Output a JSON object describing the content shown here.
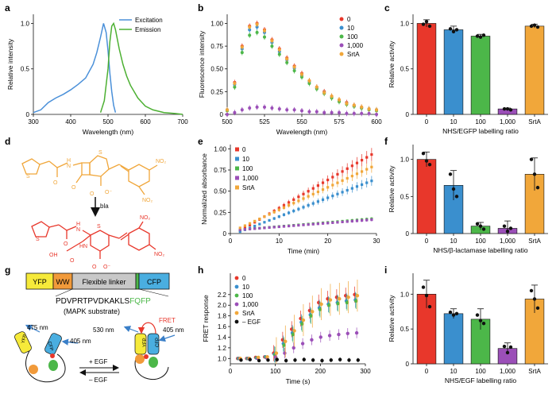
{
  "panels": {
    "a": {
      "letter": "a",
      "ylabel": "Relative intensity",
      "xlabel": "Wavelength (nm)",
      "xticks": [
        "300",
        "400",
        "500",
        "600",
        "700"
      ],
      "yticks": [
        "0",
        "0.5",
        "1.0"
      ],
      "legend": [
        "Excitation",
        "Emission"
      ]
    },
    "b": {
      "letter": "b",
      "ylabel": "Fluorescence intensity",
      "xlabel": "Wavelength (nm)",
      "xticks": [
        "500",
        "525",
        "550",
        "575",
        "600"
      ],
      "yticks": [
        "0",
        "0.25",
        "0.50",
        "0.75",
        "1.00"
      ],
      "legend": [
        "0",
        "10",
        "100",
        "1,000",
        "SrtA"
      ]
    },
    "c": {
      "letter": "c",
      "ylabel": "Relative activity",
      "xlabel": "NHS/EGFP labelling ratio",
      "categories": [
        "0",
        "10",
        "100",
        "1,000",
        "SrtA"
      ],
      "yticks": [
        "0",
        "0.5",
        "1.0"
      ]
    },
    "d": {
      "letter": "d",
      "arrow_label": "bla"
    },
    "e": {
      "letter": "e",
      "ylabel": "Normalized absorbance",
      "xlabel": "Time (min)",
      "xticks": [
        "0",
        "10",
        "20",
        "30"
      ],
      "yticks": [
        "0",
        "0.25",
        "0.50",
        "0.75",
        "1.00"
      ],
      "legend": [
        "0",
        "10",
        "100",
        "1,000",
        "SrtA"
      ]
    },
    "f": {
      "letter": "f",
      "ylabel": "Relative activity",
      "xlabel": "NHS/β-lactamase labelling ratio",
      "categories": [
        "0",
        "10",
        "100",
        "1,000",
        "SrtA"
      ],
      "yticks": [
        "0",
        "0.5",
        "1.0"
      ]
    },
    "g": {
      "letter": "g",
      "segments": [
        "YFP",
        "WW",
        "Flexible linker",
        "CFP"
      ],
      "sequence_main": "PDVPRTPVDKAKLS",
      "sequence_green": "FQFP",
      "substrate_label": "(MAPK substrate)",
      "wl_475": "475 nm",
      "wl_405_left": "405 nm",
      "wl_530": "530 nm",
      "wl_405_right": "405 nm",
      "fret": "FRET",
      "plus_egf": "+ EGF",
      "minus_egf": "– EGF",
      "yfp": "YFP",
      "cfp": "CFP"
    },
    "h": {
      "letter": "h",
      "ylabel": "FRET response",
      "xlabel": "Time (s)",
      "xticks": [
        "0",
        "100",
        "200",
        "300"
      ],
      "yticks": [
        "1.0",
        "1.2",
        "1.4",
        "1.6",
        "1.8",
        "2.0",
        "2.2"
      ],
      "legend": [
        "0",
        "10",
        "100",
        "1,000",
        "SrtA",
        "– EGF"
      ]
    },
    "i": {
      "letter": "i",
      "ylabel": "Relative activity",
      "xlabel": "NHS/EGF labelling ratio",
      "categories": [
        "0",
        "10",
        "100",
        "1,000",
        "SrtA"
      ],
      "yticks": [
        "0",
        "0.5",
        "1.0"
      ]
    }
  },
  "colors": {
    "red": "#e8372b",
    "blue": "#3a8fce",
    "green": "#4cb749",
    "purple": "#9b4fb8",
    "orange": "#f1a73a",
    "excitation": "#4a90d9",
    "emission": "#4cb032",
    "black": "#111111"
  },
  "chart_data": [
    {
      "panel": "a",
      "type": "line",
      "xlabel": "Wavelength (nm)",
      "ylabel": "Relative intensity",
      "xlim": [
        300,
        700
      ],
      "ylim": [
        0,
        1.1
      ],
      "series": [
        {
          "name": "Excitation",
          "x": [
            300,
            320,
            340,
            360,
            380,
            400,
            420,
            440,
            460,
            470,
            480,
            488,
            495,
            500,
            505,
            510,
            515,
            520
          ],
          "y": [
            0.02,
            0.05,
            0.13,
            0.18,
            0.22,
            0.27,
            0.33,
            0.4,
            0.55,
            0.68,
            0.85,
            1.0,
            0.9,
            0.7,
            0.45,
            0.25,
            0.1,
            0.02
          ]
        },
        {
          "name": "Emission",
          "x": [
            480,
            490,
            500,
            505,
            510,
            515,
            520,
            530,
            540,
            550,
            560,
            580,
            600,
            620,
            650,
            680,
            700
          ],
          "y": [
            0.02,
            0.15,
            0.5,
            0.8,
            0.97,
            1.0,
            0.93,
            0.72,
            0.55,
            0.42,
            0.32,
            0.18,
            0.09,
            0.05,
            0.02,
            0.01,
            0.0
          ]
        }
      ]
    },
    {
      "panel": "b",
      "type": "line",
      "xlabel": "Wavelength (nm)",
      "ylabel": "Fluorescence intensity",
      "xlim": [
        500,
        600
      ],
      "ylim": [
        0,
        1.1
      ],
      "x": [
        500,
        505,
        510,
        515,
        520,
        525,
        530,
        535,
        540,
        545,
        550,
        555,
        560,
        565,
        570,
        575,
        580,
        585,
        590,
        595,
        600
      ],
      "series": [
        {
          "name": "0",
          "y": [
            0.05,
            0.35,
            0.75,
            0.97,
            1.0,
            0.93,
            0.82,
            0.72,
            0.62,
            0.53,
            0.45,
            0.37,
            0.3,
            0.25,
            0.2,
            0.16,
            0.13,
            0.1,
            0.08,
            0.06,
            0.05
          ]
        },
        {
          "name": "10",
          "y": [
            0.05,
            0.33,
            0.72,
            0.93,
            0.96,
            0.9,
            0.79,
            0.69,
            0.6,
            0.51,
            0.43,
            0.36,
            0.29,
            0.24,
            0.19,
            0.15,
            0.12,
            0.09,
            0.07,
            0.06,
            0.05
          ]
        },
        {
          "name": "100",
          "y": [
            0.04,
            0.3,
            0.68,
            0.87,
            0.9,
            0.85,
            0.75,
            0.66,
            0.57,
            0.48,
            0.41,
            0.34,
            0.28,
            0.23,
            0.18,
            0.14,
            0.11,
            0.09,
            0.07,
            0.05,
            0.04
          ]
        },
        {
          "name": "1,000",
          "y": [
            0.0,
            0.02,
            0.05,
            0.07,
            0.08,
            0.08,
            0.07,
            0.06,
            0.05,
            0.05,
            0.04,
            0.03,
            0.03,
            0.02,
            0.02,
            0.02,
            0.01,
            0.01,
            0.01,
            0.01,
            0.0
          ]
        },
        {
          "name": "SrtA",
          "y": [
            0.05,
            0.34,
            0.74,
            0.96,
            0.99,
            0.92,
            0.81,
            0.71,
            0.61,
            0.52,
            0.44,
            0.37,
            0.3,
            0.24,
            0.2,
            0.16,
            0.12,
            0.1,
            0.08,
            0.06,
            0.05
          ]
        }
      ]
    },
    {
      "panel": "c",
      "type": "bar",
      "xlabel": "NHS/EGFP labelling ratio",
      "ylabel": "Relative activity",
      "ylim": [
        0,
        1.1
      ],
      "categories": [
        "0",
        "10",
        "100",
        "1,000",
        "SrtA"
      ],
      "values": [
        1.0,
        0.93,
        0.86,
        0.06,
        0.97
      ],
      "errors": [
        0.04,
        0.04,
        0.02,
        0.01,
        0.02
      ],
      "points": [
        [
          0.99,
          1.02,
          0.97
        ],
        [
          0.94,
          0.91,
          0.93
        ],
        [
          0.86,
          0.85,
          0.87
        ],
        [
          0.06,
          0.06,
          0.05
        ],
        [
          0.97,
          0.98,
          0.96
        ]
      ]
    },
    {
      "panel": "e",
      "type": "scatter",
      "xlabel": "Time (min)",
      "ylabel": "Normalized absorbance",
      "xlim": [
        0,
        30
      ],
      "ylim": [
        0,
        1.05
      ],
      "x": [
        2,
        3,
        4,
        5,
        6,
        7,
        8,
        9,
        10,
        11,
        12,
        13,
        14,
        15,
        16,
        17,
        18,
        19,
        20,
        21,
        22,
        23,
        24,
        25,
        26,
        27,
        28,
        29
      ],
      "series": [
        {
          "name": "0",
          "slope": 0.0333,
          "err": 0.08
        },
        {
          "name": "10",
          "slope": 0.0222,
          "err": 0.06
        },
        {
          "name": "100",
          "slope": 0.0048,
          "err": 0.02
        },
        {
          "name": "1,000",
          "slope": 0.0044,
          "err": 0.02
        },
        {
          "name": "SrtA",
          "slope": 0.0266,
          "err": 0.07
        }
      ]
    },
    {
      "panel": "f",
      "type": "bar",
      "xlabel": "NHS/β-lactamase labelling ratio",
      "ylabel": "Relative activity",
      "ylim": [
        0,
        1.2
      ],
      "categories": [
        "0",
        "10",
        "100",
        "1,000",
        "SrtA"
      ],
      "values": [
        1.0,
        0.65,
        0.1,
        0.07,
        0.8
      ],
      "errors": [
        0.1,
        0.2,
        0.05,
        0.1,
        0.22
      ],
      "points": [
        [
          1.08,
          0.98,
          0.93
        ],
        [
          0.8,
          0.6,
          0.5
        ],
        [
          0.13,
          0.1,
          0.06
        ],
        [
          0.1,
          0.03,
          0.07
        ],
        [
          1.0,
          0.8,
          0.62
        ]
      ]
    },
    {
      "panel": "h",
      "type": "scatter",
      "xlabel": "Time (s)",
      "ylabel": "FRET response",
      "xlim": [
        0,
        300
      ],
      "ylim": [
        0.9,
        2.6
      ],
      "x": [
        20,
        40,
        60,
        80,
        100,
        120,
        140,
        160,
        180,
        200,
        220,
        240,
        260,
        280
      ],
      "series": [
        {
          "name": "0",
          "y": [
            1.0,
            1.0,
            1.02,
            1.03,
            1.1,
            1.35,
            1.55,
            1.75,
            1.9,
            2.05,
            2.12,
            2.15,
            2.18,
            2.2
          ],
          "err": 0.15
        },
        {
          "name": "10",
          "y": [
            1.0,
            1.0,
            1.01,
            1.03,
            1.08,
            1.28,
            1.48,
            1.68,
            1.82,
            1.95,
            2.02,
            2.05,
            2.08,
            2.1
          ],
          "err": 0.15
        },
        {
          "name": "100",
          "y": [
            1.0,
            1.0,
            1.01,
            1.02,
            1.07,
            1.25,
            1.45,
            1.65,
            1.8,
            1.92,
            2.0,
            2.03,
            2.05,
            2.08
          ],
          "err": 0.15
        },
        {
          "name": "1,000",
          "y": [
            1.0,
            1.0,
            1.0,
            1.01,
            1.03,
            1.1,
            1.2,
            1.28,
            1.35,
            1.4,
            1.43,
            1.45,
            1.47,
            1.48
          ],
          "err": 0.1
        },
        {
          "name": "SrtA",
          "y": [
            1.0,
            1.0,
            1.02,
            1.03,
            1.1,
            1.32,
            1.52,
            1.72,
            1.88,
            2.02,
            2.1,
            2.12,
            2.15,
            2.18
          ],
          "err": 0.3
        },
        {
          "name": "– EGF",
          "y": [
            0.97,
            0.98,
            0.96,
            0.97,
            0.98,
            0.96,
            0.97,
            0.98,
            0.97,
            0.96,
            0.97,
            0.98,
            0.97,
            0.97
          ],
          "err": 0.04
        }
      ]
    },
    {
      "panel": "i",
      "type": "bar",
      "xlabel": "NHS/EGF labelling ratio",
      "ylabel": "Relative activity",
      "ylim": [
        0,
        1.3
      ],
      "categories": [
        "0",
        "10",
        "100",
        "1,000",
        "SrtA"
      ],
      "values": [
        1.0,
        0.72,
        0.64,
        0.22,
        0.93
      ],
      "errors": [
        0.2,
        0.07,
        0.15,
        0.08,
        0.2
      ],
      "points": [
        [
          1.1,
          0.98,
          0.82
        ],
        [
          0.74,
          0.7,
          0.72
        ],
        [
          0.7,
          0.62,
          0.58
        ],
        [
          0.25,
          0.16,
          0.24
        ],
        [
          1.05,
          0.93,
          0.8
        ]
      ]
    }
  ]
}
